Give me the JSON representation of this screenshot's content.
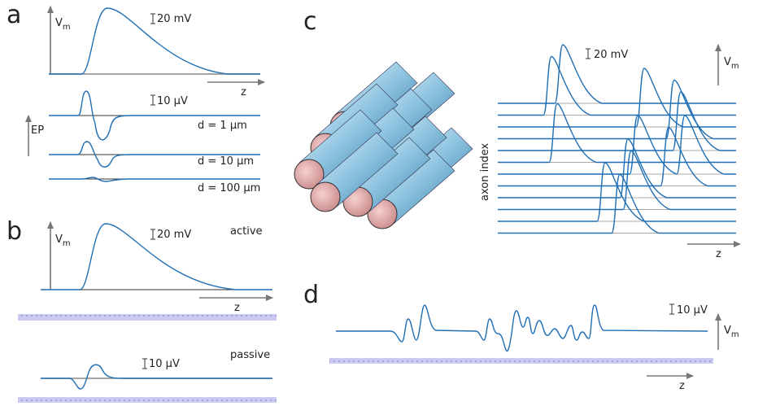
{
  "panels": {
    "a": {
      "label": "a",
      "vm_main": "V",
      "vm_sub": "m",
      "scale_vm": "20 mV",
      "z": "z",
      "ep": "EP",
      "scale_ep": "10 µV",
      "distances": [
        "d = 1 µm",
        "d = 10 µm",
        "d = 100 µm"
      ]
    },
    "b": {
      "label": "b",
      "vm_main": "V",
      "vm_sub": "m",
      "scale_active": "20 mV",
      "active": "active",
      "z": "z",
      "passive": "passive",
      "scale_passive": "10 µV"
    },
    "c": {
      "label": "c",
      "scale": "20 mV",
      "vm_main": "V",
      "vm_sub": "m",
      "y_label": "axon index",
      "z": "z"
    },
    "d": {
      "label": "d",
      "scale": "10 µV",
      "vm_main": "V",
      "vm_sub": "m",
      "z": "z"
    }
  }
}
